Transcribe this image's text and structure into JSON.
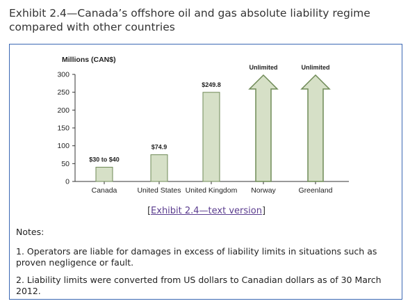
{
  "exhibit": {
    "title": "Exhibit 2.4—Canada’s offshore oil and gas absolute liability regime compared with other countries",
    "link_open": "[",
    "link_text": "Exhibit 2.4—text version",
    "link_close": "]"
  },
  "notes": {
    "heading": "Notes:",
    "items": [
      "1. Operators are liable for damages in excess of liability limits in situations such as proven negligence or fault.",
      "2. Liability limits were converted from US dollars to Canadian dollars as of 30 March 2012."
    ]
  },
  "colors": {
    "bar_fill": "#d6e0c7",
    "bar_stroke": "#6f8a57",
    "axis": "#333333",
    "panel_border": "#3a67b3"
  },
  "chart_data": {
    "type": "bar",
    "ylabel": "Millions (CAN$)",
    "ylim": [
      0,
      300
    ],
    "yticks": [
      0,
      50,
      100,
      150,
      200,
      250,
      300
    ],
    "categories": [
      "Canada",
      "United States",
      "United Kingdom",
      "Norway",
      "Greenland"
    ],
    "values": [
      40,
      74.9,
      249.8,
      null,
      null
    ],
    "range_low": [
      30,
      null,
      null,
      null,
      null
    ],
    "unlimited": [
      false,
      false,
      false,
      true,
      true
    ],
    "data_labels": [
      "$30 to $40",
      "$74.9",
      "$249.8",
      "Unlimited",
      "Unlimited"
    ]
  }
}
